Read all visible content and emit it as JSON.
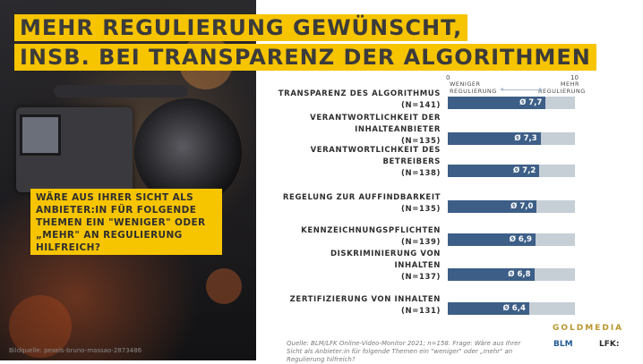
{
  "title": {
    "line1": "MEHR REGULIERUNG GEWÜNSCHT,",
    "line2": "INSB. BEI TRANSPARENZ DER ALGORITHMEN"
  },
  "question": "WÄRE AUS IHRER SICHT ALS ANBIETER:IN FÜR FOLGENDE THEMEN EIN \"WENIGER\" ODER „MEHR\" AN REGULIERUNG HILFREICH?",
  "photo_credit": "Bildquelle: pexels-bruno-massao-2873486",
  "scale": {
    "min": "0",
    "max": "10",
    "left_label_1": "WENIGER",
    "left_label_2": "REGULIERUNG",
    "right_label_1": "MEHR",
    "right_label_2": "REGULIERUNG"
  },
  "chart_data": {
    "type": "bar",
    "orientation": "horizontal",
    "xlim": [
      0,
      10
    ],
    "categories": [
      "TRANSPARENZ DES ALGORITHMUS (N=141)",
      "VERANTWORTLICHKEIT DER INHALTEANBIETER (N=135)",
      "VERANTWORTLICHKEIT DES BETREIBERS (N=138)",
      "REGELUNG ZUR AUFFINDBARKEIT (N=135)",
      "KENNZEICHNUNGSPFLICHTEN (N=139)",
      "DISKRIMINIERUNG VON INHALTEN (N=137)",
      "ZERTIFIZIERUNG VON INHALTEN (N=131)"
    ],
    "values": [
      7.7,
      7.3,
      7.2,
      7.0,
      6.9,
      6.8,
      6.4
    ],
    "rows": [
      {
        "label_lines": [
          "TRANSPARENZ DES ALGORITHMUS",
          "(N=141)"
        ],
        "value": 7.7,
        "value_label": "Ø 7,7"
      },
      {
        "label_lines": [
          "VERANTWORTLICHKEIT DER",
          "INHALTEANBIETER",
          "(N=135)"
        ],
        "value": 7.3,
        "value_label": "Ø 7,3"
      },
      {
        "label_lines": [
          "VERANTWORTLICHKEIT DES",
          "BETREIBERS",
          "(N=138)"
        ],
        "value": 7.2,
        "value_label": "Ø 7,2"
      },
      {
        "label_lines": [
          "REGELUNG ZUR AUFFINDBARKEIT",
          "(N=135)"
        ],
        "value": 7.0,
        "value_label": "Ø 7,0"
      },
      {
        "label_lines": [
          "KENNZEICHNUNGSPFLICHTEN",
          "(N=139)"
        ],
        "value": 6.9,
        "value_label": "Ø 6,9"
      },
      {
        "label_lines": [
          "DISKRIMINIERUNG VON",
          "INHALTEN",
          "(N=137)"
        ],
        "value": 6.8,
        "value_label": "Ø 6,8"
      },
      {
        "label_lines": [
          "ZERTIFIZIERUNG VON INHALTEN",
          "(N=131)"
        ],
        "value": 6.4,
        "value_label": "Ø 6,4"
      }
    ],
    "colors": {
      "bar": "#3d5f87",
      "track": "#c6ced6",
      "accent": "#f7c400"
    }
  },
  "source": "Quelle: BLM/LFK Online-Video-Monitor 2021; n=158. Frage: Wäre aus Ihrer Sicht als Anbieter:in für folgende Themen ein \"weniger\" oder „mehr\" an Regulierung hilfreich?",
  "logos": {
    "goldmedia": "GOLDMEDIA",
    "blm": "BLM",
    "lfk": "LFK:"
  }
}
